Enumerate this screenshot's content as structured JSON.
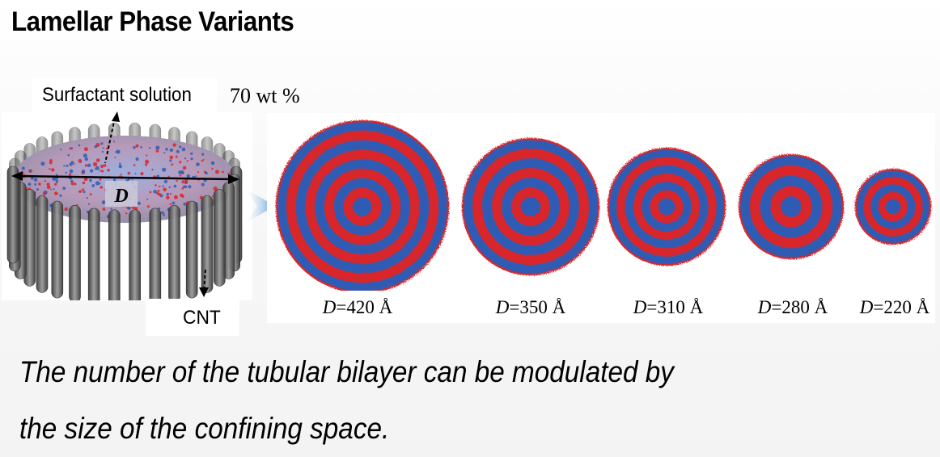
{
  "title": "Lamellar Phase Variants",
  "schematic": {
    "surfactant_label": "Surfactant solution",
    "concentration": "70 wt %",
    "diameter_symbol": "D",
    "cnt_label": "CNT"
  },
  "colors": {
    "bilayer_blue": "#2f5bb5",
    "bilayer_red": "#d9262c",
    "arrow_blue": "#5aa2dc",
    "cnt_gray": "#5e5e5e"
  },
  "cross_sections": [
    {
      "symbol": "D",
      "value": "=420 Å",
      "rings": 4
    },
    {
      "symbol": "D",
      "value": "=350 Å",
      "rings": 3
    },
    {
      "symbol": "D",
      "value": "=310 Å",
      "rings": 3
    },
    {
      "symbol": "D",
      "value": "=280 Å",
      "rings": 2
    },
    {
      "symbol": "D",
      "value": "=220 Å",
      "rings": 2
    }
  ],
  "caption": {
    "line1": "The number of the tubular bilayer can be modulated by",
    "line2": "the size of the confining space."
  }
}
